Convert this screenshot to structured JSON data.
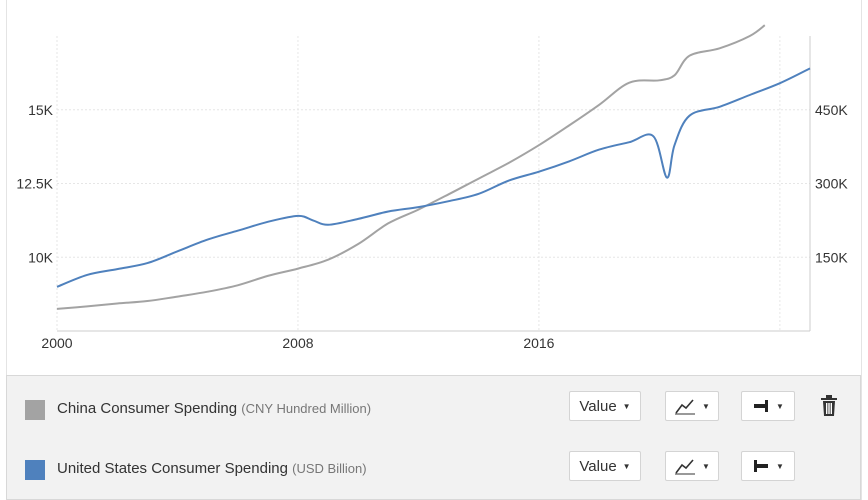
{
  "chart_data": {
    "type": "line",
    "x_ticks": [
      "2000",
      "2008",
      "2016"
    ],
    "y_left_ticks": [
      "10K",
      "12.5K",
      "15K"
    ],
    "y_right_ticks": [
      "150K",
      "300K",
      "450K"
    ],
    "y_left_range": [
      7500,
      17500
    ],
    "y_right_range": [
      0,
      600000
    ],
    "x_range": [
      2000,
      2025
    ],
    "grid": true,
    "series": [
      {
        "name": "China Consumer Spending",
        "unit": "CNY Hundred Million",
        "axis": "right",
        "color": "#a3a3a3",
        "x": [
          2000,
          2001,
          2002,
          2003,
          2004,
          2005,
          2006,
          2007,
          2008,
          2009,
          2010,
          2011,
          2012,
          2013,
          2014,
          2015,
          2016,
          2017,
          2018,
          2019,
          2020,
          2020.5,
          2021,
          2022,
          2023,
          2023.5
        ],
        "y": [
          45000,
          50000,
          56000,
          61000,
          70000,
          80000,
          93000,
          112000,
          127000,
          145000,
          177000,
          219000,
          247000,
          278000,
          310000,
          342000,
          378000,
          418000,
          460000,
          505000,
          510000,
          520000,
          560000,
          575000,
          600000,
          622000
        ]
      },
      {
        "name": "United States Consumer Spending",
        "unit": "USD Billion",
        "axis": "left",
        "color": "#4f81bd",
        "x": [
          2000,
          2001,
          2002,
          2003,
          2004,
          2005,
          2006,
          2007,
          2008,
          2008.5,
          2009,
          2010,
          2011,
          2012,
          2013,
          2014,
          2015,
          2016,
          2017,
          2018,
          2019,
          2019.8,
          2020.25,
          2020.5,
          2021,
          2022,
          2023,
          2024,
          2025
        ],
        "y": [
          9000,
          9400,
          9600,
          9800,
          10200,
          10600,
          10900,
          11200,
          11400,
          11250,
          11100,
          11300,
          11550,
          11700,
          11900,
          12150,
          12600,
          12900,
          13250,
          13650,
          13900,
          14100,
          12700,
          13800,
          14800,
          15100,
          15500,
          15900,
          16400
        ]
      }
    ]
  },
  "legend": [
    {
      "name": "China Consumer Spending",
      "unit": "(CNY Hundred Million)",
      "color": "#a3a3a3",
      "value_label": "Value"
    },
    {
      "name": "United States Consumer Spending",
      "unit": "(USD Billion)",
      "color": "#4f81bd",
      "value_label": "Value"
    }
  ]
}
